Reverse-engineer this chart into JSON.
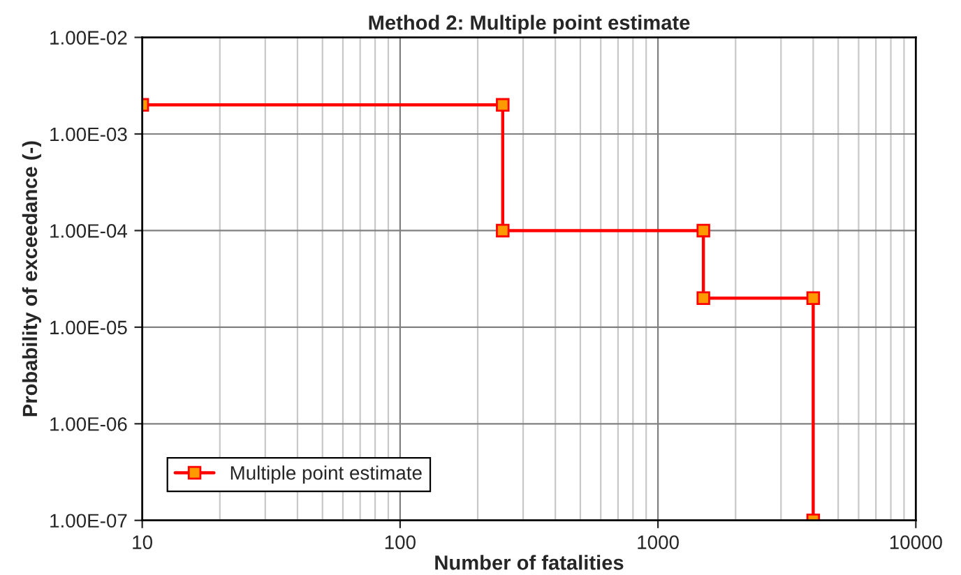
{
  "chart_data": {
    "type": "line",
    "title": "Method 2: Multiple point estimate",
    "xlabel": "Number of fatalities",
    "ylabel": "Probability of exceedance (-)",
    "log": "xy",
    "grid": true,
    "legend": "bottom left",
    "marker": "square",
    "line_style": "solid",
    "xlim": [
      10,
      10000
    ],
    "xticks": [
      10,
      100,
      1000,
      10000
    ],
    "ylim": [
      1e-07,
      0.01
    ],
    "yticks": [
      {
        "value": 1e-07,
        "label": "1.00E-07"
      },
      {
        "value": 1e-06,
        "label": "1.00E-06"
      },
      {
        "value": 1e-05,
        "label": "1.00E-05"
      },
      {
        "value": 0.0001,
        "label": "1.00E-04"
      },
      {
        "value": 0.001,
        "label": "1.00E-03"
      },
      {
        "value": 0.01,
        "label": "1.00E-02"
      }
    ],
    "series": [
      {
        "name": "Multiple point estimate",
        "color": "#ff0000",
        "x": [
          10,
          250,
          250,
          1500,
          1500,
          4000,
          4000
        ],
        "values": [
          0.002,
          0.002,
          0.0001,
          0.0001,
          2e-05,
          2e-05,
          1e-07
        ]
      }
    ]
  }
}
